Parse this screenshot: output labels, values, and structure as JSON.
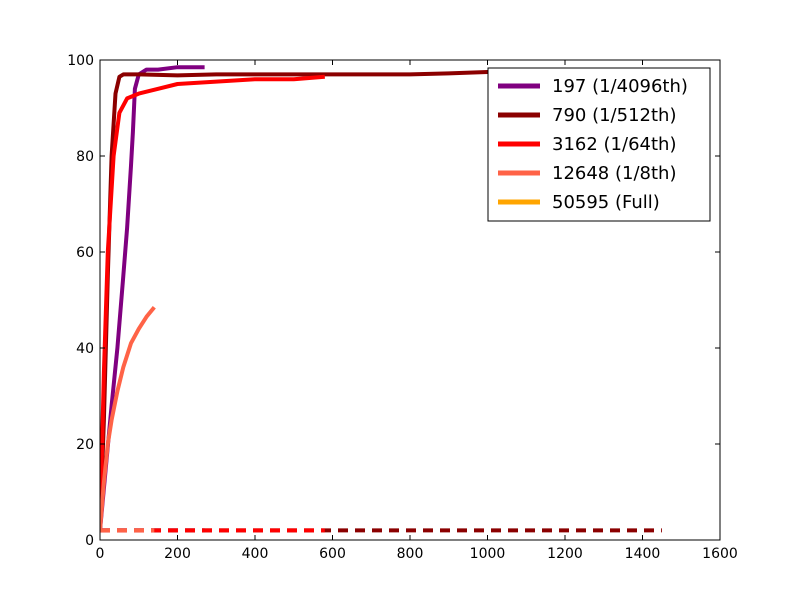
{
  "chart_data": {
    "type": "line",
    "title": "",
    "xlabel": "",
    "ylabel": "",
    "xlim": [
      0,
      1600
    ],
    "ylim": [
      0,
      100
    ],
    "x_ticks": [
      0,
      200,
      400,
      600,
      800,
      1000,
      1200,
      1400,
      1600
    ],
    "y_ticks": [
      0,
      20,
      40,
      60,
      80,
      100
    ],
    "grid": false,
    "legend_position": "top-right",
    "series": [
      {
        "name": "197 (1/4096th)",
        "color": "#800080",
        "solid": [
          [
            0,
            2
          ],
          [
            15,
            15
          ],
          [
            30,
            28
          ],
          [
            45,
            40
          ],
          [
            60,
            55
          ],
          [
            70,
            65
          ],
          [
            80,
            78
          ],
          [
            85,
            85
          ],
          [
            90,
            94
          ],
          [
            100,
            97
          ],
          [
            120,
            98
          ],
          [
            150,
            98
          ],
          [
            200,
            98.5
          ],
          [
            240,
            98.5
          ],
          [
            270,
            98.5
          ]
        ],
        "dashed": [
          [
            0,
            2
          ],
          [
            50,
            2
          ],
          [
            100,
            2
          ],
          [
            150,
            2
          ],
          [
            200,
            2
          ],
          [
            270,
            2
          ]
        ]
      },
      {
        "name": "790 (1/512th)",
        "color": "#8b0000",
        "solid": [
          [
            0,
            2
          ],
          [
            10,
            25
          ],
          [
            20,
            55
          ],
          [
            30,
            80
          ],
          [
            40,
            93
          ],
          [
            50,
            96.5
          ],
          [
            60,
            97
          ],
          [
            100,
            97
          ],
          [
            200,
            96.8
          ],
          [
            300,
            97
          ],
          [
            400,
            97
          ],
          [
            500,
            97
          ],
          [
            600,
            97
          ],
          [
            700,
            97
          ],
          [
            800,
            97
          ],
          [
            900,
            97.2
          ],
          [
            1000,
            97.5
          ],
          [
            1100,
            97.5
          ],
          [
            1200,
            97.5
          ],
          [
            1300,
            97.5
          ],
          [
            1400,
            97.5
          ],
          [
            1450,
            97.5
          ]
        ],
        "dashed": [
          [
            0,
            2
          ],
          [
            200,
            2
          ],
          [
            400,
            2
          ],
          [
            600,
            2
          ],
          [
            800,
            2
          ],
          [
            1000,
            2
          ],
          [
            1200,
            2
          ],
          [
            1400,
            2
          ],
          [
            1450,
            2
          ]
        ]
      },
      {
        "name": "3162 (1/64th)",
        "color": "#ff0000",
        "solid": [
          [
            0,
            2
          ],
          [
            10,
            35
          ],
          [
            20,
            60
          ],
          [
            35,
            80
          ],
          [
            50,
            89
          ],
          [
            70,
            92
          ],
          [
            100,
            93
          ],
          [
            150,
            94
          ],
          [
            200,
            95
          ],
          [
            300,
            95.5
          ],
          [
            400,
            96
          ],
          [
            500,
            96
          ],
          [
            580,
            96.5
          ]
        ],
        "dashed": [
          [
            0,
            2
          ],
          [
            100,
            2
          ],
          [
            200,
            2
          ],
          [
            300,
            2
          ],
          [
            400,
            2
          ],
          [
            500,
            2
          ],
          [
            580,
            2
          ]
        ]
      },
      {
        "name": "12648 (1/8th)",
        "color": "#ff6347",
        "solid": [
          [
            0,
            2
          ],
          [
            10,
            12
          ],
          [
            20,
            20
          ],
          [
            30,
            25
          ],
          [
            45,
            31
          ],
          [
            60,
            36
          ],
          [
            80,
            41
          ],
          [
            100,
            44
          ],
          [
            120,
            46.5
          ],
          [
            140,
            48.5
          ]
        ],
        "dashed": [
          [
            0,
            2
          ],
          [
            50,
            2
          ],
          [
            100,
            2
          ],
          [
            140,
            2
          ]
        ]
      },
      {
        "name": "50595 (Full)",
        "color": "#ffa500",
        "solid": [],
        "dashed": []
      }
    ]
  }
}
